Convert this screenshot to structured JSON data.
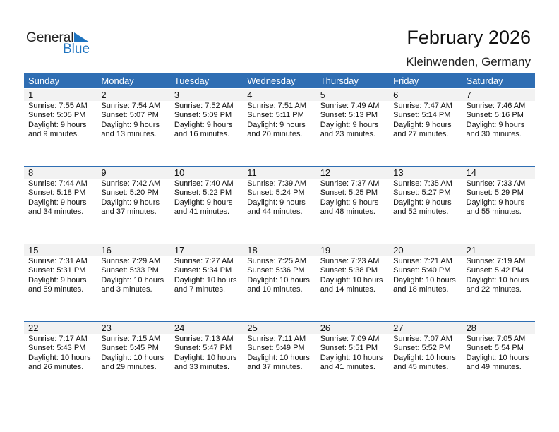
{
  "logo": {
    "general": "General",
    "blue": "Blue"
  },
  "title": "February 2026",
  "location": "Kleinwenden, Germany",
  "colors": {
    "header": "#2f6eb3",
    "logo_blue": "#1f74c0",
    "date_band": "#f2f2f2"
  },
  "weekdays": [
    "Sunday",
    "Monday",
    "Tuesday",
    "Wednesday",
    "Thursday",
    "Friday",
    "Saturday"
  ],
  "weeks": [
    [
      {
        "day": "1",
        "lines": [
          "Sunrise: 7:55 AM",
          "Sunset: 5:05 PM",
          "Daylight: 9 hours",
          "and 9 minutes."
        ]
      },
      {
        "day": "2",
        "lines": [
          "Sunrise: 7:54 AM",
          "Sunset: 5:07 PM",
          "Daylight: 9 hours",
          "and 13 minutes."
        ]
      },
      {
        "day": "3",
        "lines": [
          "Sunrise: 7:52 AM",
          "Sunset: 5:09 PM",
          "Daylight: 9 hours",
          "and 16 minutes."
        ]
      },
      {
        "day": "4",
        "lines": [
          "Sunrise: 7:51 AM",
          "Sunset: 5:11 PM",
          "Daylight: 9 hours",
          "and 20 minutes."
        ]
      },
      {
        "day": "5",
        "lines": [
          "Sunrise: 7:49 AM",
          "Sunset: 5:13 PM",
          "Daylight: 9 hours",
          "and 23 minutes."
        ]
      },
      {
        "day": "6",
        "lines": [
          "Sunrise: 7:47 AM",
          "Sunset: 5:14 PM",
          "Daylight: 9 hours",
          "and 27 minutes."
        ]
      },
      {
        "day": "7",
        "lines": [
          "Sunrise: 7:46 AM",
          "Sunset: 5:16 PM",
          "Daylight: 9 hours",
          "and 30 minutes."
        ]
      }
    ],
    [
      {
        "day": "8",
        "lines": [
          "Sunrise: 7:44 AM",
          "Sunset: 5:18 PM",
          "Daylight: 9 hours",
          "and 34 minutes."
        ]
      },
      {
        "day": "9",
        "lines": [
          "Sunrise: 7:42 AM",
          "Sunset: 5:20 PM",
          "Daylight: 9 hours",
          "and 37 minutes."
        ]
      },
      {
        "day": "10",
        "lines": [
          "Sunrise: 7:40 AM",
          "Sunset: 5:22 PM",
          "Daylight: 9 hours",
          "and 41 minutes."
        ]
      },
      {
        "day": "11",
        "lines": [
          "Sunrise: 7:39 AM",
          "Sunset: 5:24 PM",
          "Daylight: 9 hours",
          "and 44 minutes."
        ]
      },
      {
        "day": "12",
        "lines": [
          "Sunrise: 7:37 AM",
          "Sunset: 5:25 PM",
          "Daylight: 9 hours",
          "and 48 minutes."
        ]
      },
      {
        "day": "13",
        "lines": [
          "Sunrise: 7:35 AM",
          "Sunset: 5:27 PM",
          "Daylight: 9 hours",
          "and 52 minutes."
        ]
      },
      {
        "day": "14",
        "lines": [
          "Sunrise: 7:33 AM",
          "Sunset: 5:29 PM",
          "Daylight: 9 hours",
          "and 55 minutes."
        ]
      }
    ],
    [
      {
        "day": "15",
        "lines": [
          "Sunrise: 7:31 AM",
          "Sunset: 5:31 PM",
          "Daylight: 9 hours",
          "and 59 minutes."
        ]
      },
      {
        "day": "16",
        "lines": [
          "Sunrise: 7:29 AM",
          "Sunset: 5:33 PM",
          "Daylight: 10 hours",
          "and 3 minutes."
        ]
      },
      {
        "day": "17",
        "lines": [
          "Sunrise: 7:27 AM",
          "Sunset: 5:34 PM",
          "Daylight: 10 hours",
          "and 7 minutes."
        ]
      },
      {
        "day": "18",
        "lines": [
          "Sunrise: 7:25 AM",
          "Sunset: 5:36 PM",
          "Daylight: 10 hours",
          "and 10 minutes."
        ]
      },
      {
        "day": "19",
        "lines": [
          "Sunrise: 7:23 AM",
          "Sunset: 5:38 PM",
          "Daylight: 10 hours",
          "and 14 minutes."
        ]
      },
      {
        "day": "20",
        "lines": [
          "Sunrise: 7:21 AM",
          "Sunset: 5:40 PM",
          "Daylight: 10 hours",
          "and 18 minutes."
        ]
      },
      {
        "day": "21",
        "lines": [
          "Sunrise: 7:19 AM",
          "Sunset: 5:42 PM",
          "Daylight: 10 hours",
          "and 22 minutes."
        ]
      }
    ],
    [
      {
        "day": "22",
        "lines": [
          "Sunrise: 7:17 AM",
          "Sunset: 5:43 PM",
          "Daylight: 10 hours",
          "and 26 minutes."
        ]
      },
      {
        "day": "23",
        "lines": [
          "Sunrise: 7:15 AM",
          "Sunset: 5:45 PM",
          "Daylight: 10 hours",
          "and 29 minutes."
        ]
      },
      {
        "day": "24",
        "lines": [
          "Sunrise: 7:13 AM",
          "Sunset: 5:47 PM",
          "Daylight: 10 hours",
          "and 33 minutes."
        ]
      },
      {
        "day": "25",
        "lines": [
          "Sunrise: 7:11 AM",
          "Sunset: 5:49 PM",
          "Daylight: 10 hours",
          "and 37 minutes."
        ]
      },
      {
        "day": "26",
        "lines": [
          "Sunrise: 7:09 AM",
          "Sunset: 5:51 PM",
          "Daylight: 10 hours",
          "and 41 minutes."
        ]
      },
      {
        "day": "27",
        "lines": [
          "Sunrise: 7:07 AM",
          "Sunset: 5:52 PM",
          "Daylight: 10 hours",
          "and 45 minutes."
        ]
      },
      {
        "day": "28",
        "lines": [
          "Sunrise: 7:05 AM",
          "Sunset: 5:54 PM",
          "Daylight: 10 hours",
          "and 49 minutes."
        ]
      }
    ]
  ]
}
